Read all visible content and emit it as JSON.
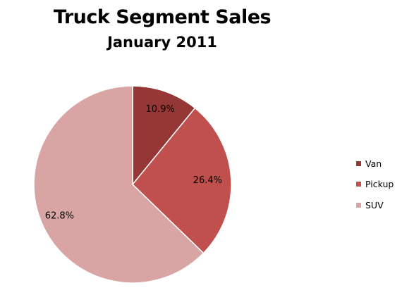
{
  "chart_data": {
    "type": "pie",
    "title": "Truck Segment Sales",
    "subtitle": "January 2011",
    "categories": [
      "Van",
      "Pickup",
      "SUV"
    ],
    "values": [
      10.9,
      26.4,
      62.8
    ],
    "data_labels": [
      "10.9%",
      "26.4%",
      "62.8%"
    ],
    "colors": [
      "#953735",
      "#c0504d",
      "#d9a5a4"
    ],
    "legend_position": "right"
  }
}
